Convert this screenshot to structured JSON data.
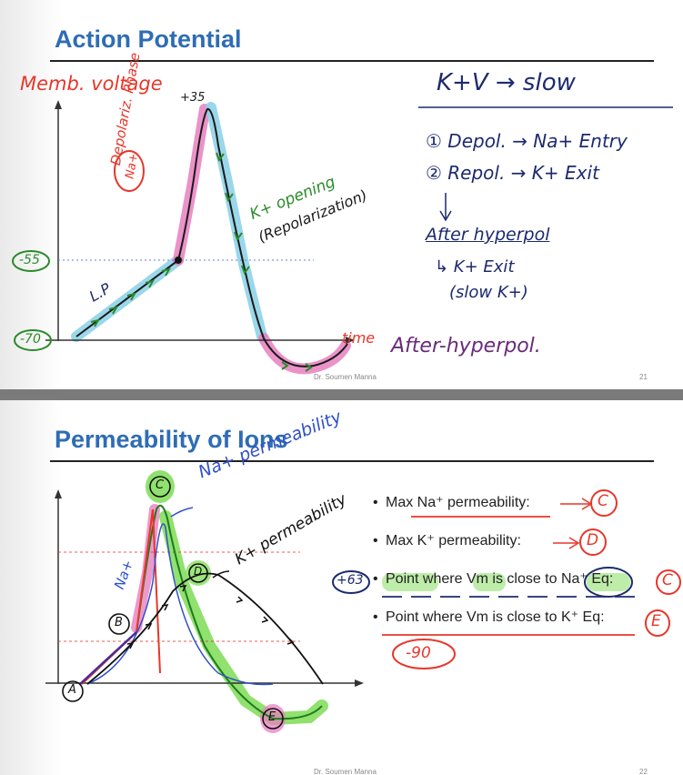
{
  "slide1": {
    "title": "Action Potential",
    "footer": "Dr. Soumen Manna",
    "page_number": "21",
    "handwriting": {
      "y_axis_label": "Memb. voltage",
      "peak_value": "+35",
      "threshold_value": "-55",
      "resting_value": "-70",
      "x_axis_label": "time",
      "na_circle": "Na+",
      "depol_label": "Depolariz. Phase",
      "k_opening": "K+ opening",
      "repol_label": "(Repolarization)",
      "lp_label": "L.P",
      "after_hyper_label": "After-hyperpol.",
      "notes_title": "K+V → slow",
      "note1": "① Depol. → Na+ Entry",
      "note2": "② Repol. → K+ Exit",
      "note3": "After hyperpol",
      "note4": "↳ K+ Exit",
      "note5": "(slow K+)"
    }
  },
  "slide2": {
    "title": "Permeability of Ions",
    "footer": "Dr. Soumen Manna",
    "page_number": "22",
    "bullets": [
      "Max Na⁺ permeability:",
      "Max K⁺ permeability:",
      "Point where Vm is close to Na⁺ Eq:",
      "Point where Vm is close to K⁺ Eq:"
    ],
    "handwriting": {
      "na_perm": "Na+ permeability",
      "k_perm": "K+ permeability",
      "na_side": "Na+",
      "point_a": "A",
      "point_b": "B",
      "point_c": "C",
      "point_d": "D",
      "point_e": "E",
      "ans1": "C",
      "ans2": "D",
      "ans3": "C",
      "ans4": "E",
      "plus63": "+63",
      "minus90": "-90"
    }
  },
  "colors": {
    "title_blue": "#2e6db4",
    "ink_red": "#e8362a",
    "ink_green": "#2a8a2a",
    "ink_navy": "#1c2a6e",
    "ink_purple": "#6a2a7a",
    "highlight_cyan": "#8fd3e8",
    "highlight_pink": "#e77fbf",
    "highlight_green": "#7ddc55"
  }
}
